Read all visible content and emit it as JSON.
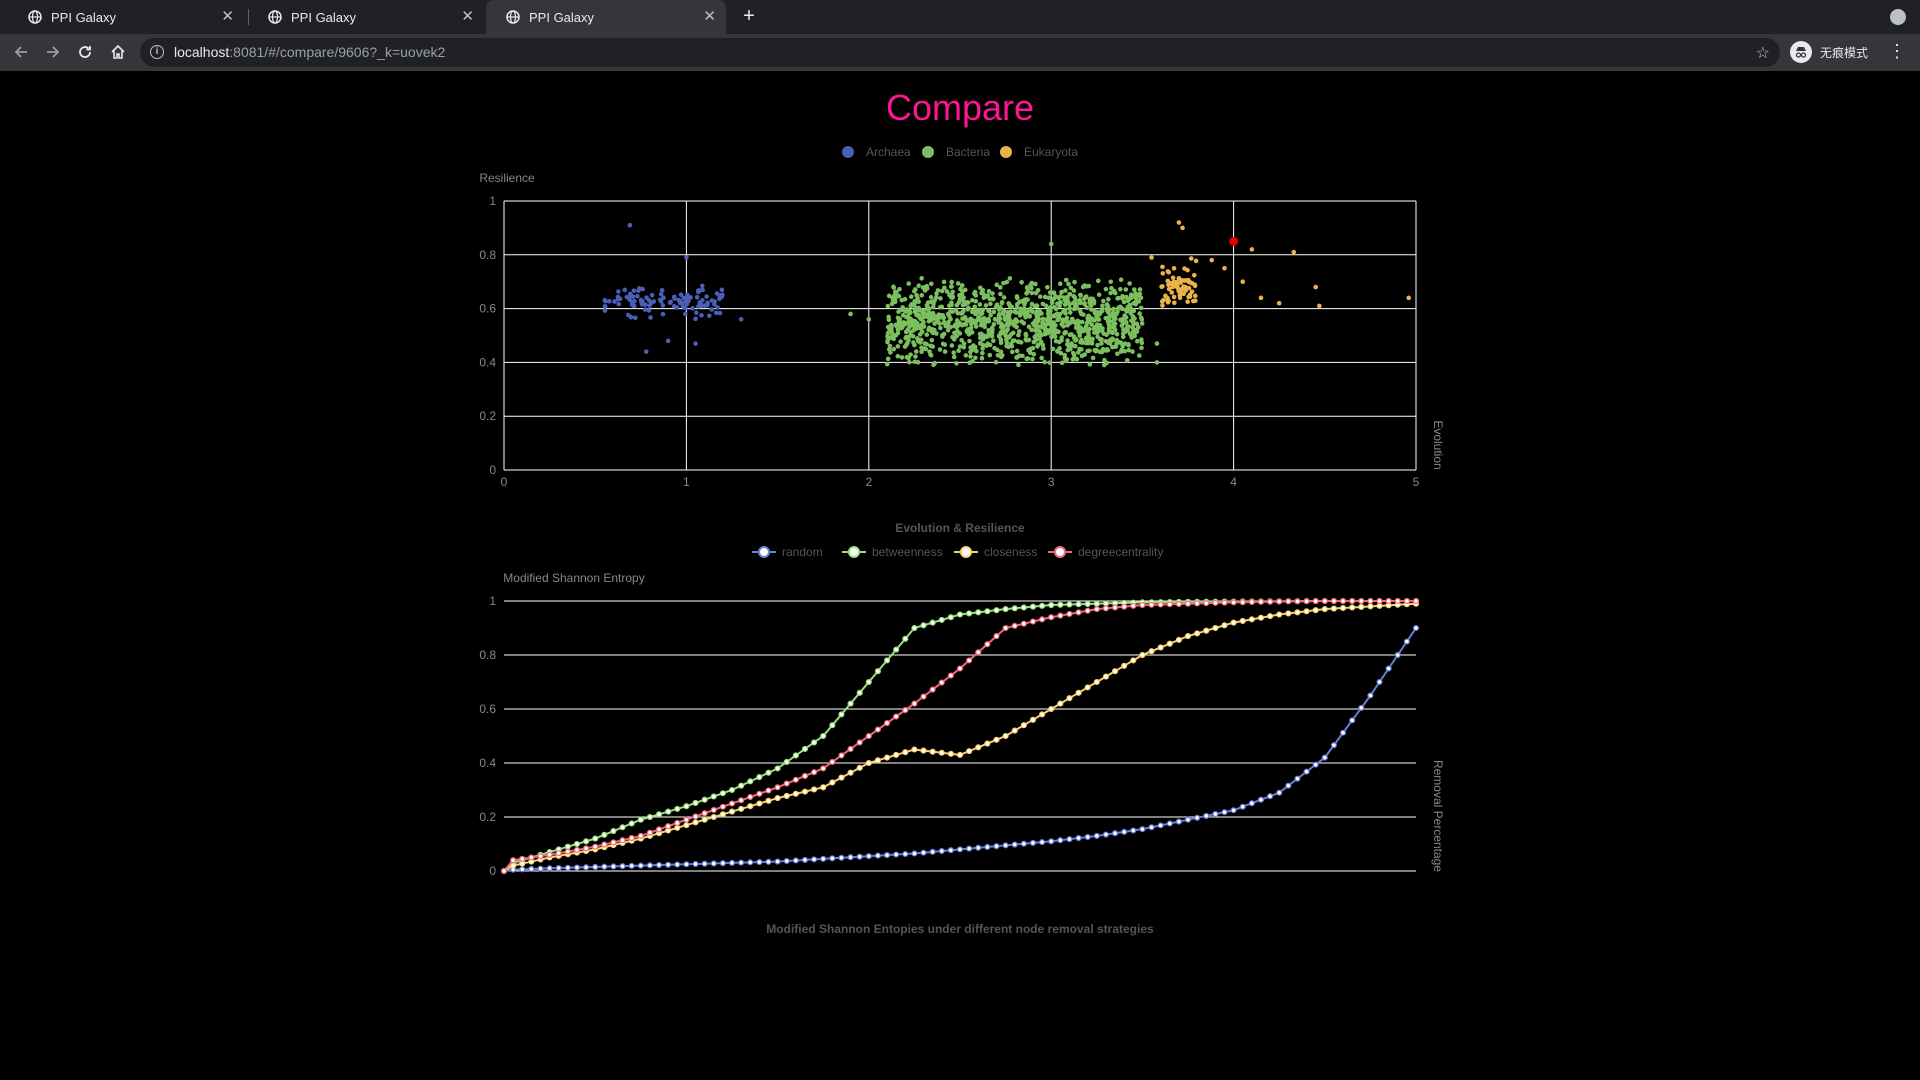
{
  "browser": {
    "tabs": [
      {
        "title": "PPI Galaxy",
        "active": false
      },
      {
        "title": "PPI Galaxy",
        "active": false
      },
      {
        "title": "PPI Galaxy",
        "active": true
      }
    ],
    "url_host": "localhost",
    "url_rest": ":8081/#/compare/9606?_k=uovek2",
    "profile_label": "无痕模式"
  },
  "page": {
    "title": "Compare"
  },
  "colors": {
    "title": "#ff1493",
    "archaea": "#4a5fb5",
    "bacteria": "#7bbf5e",
    "eukaryota": "#e9b34a",
    "highlight": "#e00000",
    "random": "#6a7fd6",
    "betweenness": "#9be07a",
    "closeness": "#f7d36b",
    "degreecentrality": "#f06b7a"
  },
  "chart_data": [
    {
      "type": "scatter",
      "title": "Evolution & Resilience",
      "xlabel": "Evolution",
      "ylabel": "Resilience",
      "xlim": [
        0,
        5
      ],
      "ylim": [
        0,
        1
      ],
      "xticks": [
        "0",
        "1",
        "2",
        "3",
        "4",
        "5"
      ],
      "yticks": [
        "0",
        "0.2",
        "0.4",
        "0.6",
        "0.8",
        "1"
      ],
      "grid": true,
      "legend": "top-center",
      "series": [
        {
          "name": "Archaea",
          "color_key": "archaea",
          "cluster": {
            "x": [
              0.55,
              1.2
            ],
            "y": [
              0.55,
              0.7
            ]
          },
          "points": [
            [
              0.69,
              0.91
            ],
            [
              1.0,
              0.79
            ],
            [
              1.3,
              0.56
            ],
            [
              0.78,
              0.44
            ],
            [
              0.9,
              0.48
            ],
            [
              1.05,
              0.47
            ]
          ]
        },
        {
          "name": "Bacteria",
          "color_key": "bacteria",
          "cluster": {
            "x": [
              2.1,
              3.5
            ],
            "y": [
              0.38,
              0.72
            ]
          },
          "points": [
            [
              1.9,
              0.58
            ],
            [
              2.0,
              0.56
            ],
            [
              3.0,
              0.84
            ],
            [
              3.58,
              0.4
            ],
            [
              3.58,
              0.47
            ]
          ]
        },
        {
          "name": "Eukaryota",
          "color_key": "eukaryota",
          "cluster": {
            "x": [
              3.6,
              3.8
            ],
            "y": [
              0.58,
              0.8
            ]
          },
          "points": [
            [
              3.7,
              0.92
            ],
            [
              3.72,
              0.9
            ],
            [
              3.55,
              0.79
            ],
            [
              4.1,
              0.82
            ],
            [
              4.33,
              0.81
            ],
            [
              4.45,
              0.68
            ],
            [
              4.47,
              0.61
            ],
            [
              4.96,
              0.64
            ],
            [
              4.25,
              0.62
            ],
            [
              4.15,
              0.64
            ],
            [
              4.05,
              0.7
            ],
            [
              3.95,
              0.75
            ],
            [
              3.88,
              0.78
            ]
          ]
        }
      ],
      "highlight_point": {
        "x": 4.0,
        "y": 0.85,
        "color_key": "highlight"
      }
    },
    {
      "type": "line",
      "title": "Modified Shannon Entopies under different node removal strategies",
      "xlabel": "Removal Percentage",
      "ylabel": "Modified Shannon Entropy",
      "ylim": [
        0,
        1
      ],
      "yticks": [
        "0",
        "0.2",
        "0.4",
        "0.6",
        "0.8",
        "1"
      ],
      "legend": "top-center",
      "x": [
        0,
        0.01,
        0.05,
        0.1,
        0.15,
        0.2,
        0.25,
        0.3,
        0.35,
        0.4,
        0.45,
        0.5,
        0.55,
        0.6,
        0.65,
        0.7,
        0.75,
        0.8,
        0.85,
        0.9,
        0.95,
        1.0
      ],
      "series": [
        {
          "name": "random",
          "color_key": "random",
          "values": [
            0,
            0.005,
            0.01,
            0.015,
            0.02,
            0.025,
            0.03,
            0.035,
            0.045,
            0.055,
            0.065,
            0.08,
            0.095,
            0.11,
            0.13,
            0.155,
            0.19,
            0.225,
            0.29,
            0.42,
            0.65,
            0.9
          ]
        },
        {
          "name": "betweenness",
          "color_key": "betweenness",
          "values": [
            0,
            0.03,
            0.07,
            0.12,
            0.19,
            0.24,
            0.3,
            0.38,
            0.5,
            0.7,
            0.9,
            0.95,
            0.97,
            0.985,
            0.99,
            0.995,
            0.997,
            0.998,
            0.999,
            1.0,
            1.0,
            1.0
          ]
        },
        {
          "name": "closeness",
          "color_key": "closeness",
          "values": [
            0,
            0.02,
            0.05,
            0.08,
            0.12,
            0.17,
            0.22,
            0.27,
            0.31,
            0.4,
            0.45,
            0.43,
            0.5,
            0.6,
            0.7,
            0.8,
            0.87,
            0.92,
            0.95,
            0.97,
            0.98,
            0.99
          ]
        },
        {
          "name": "degreecentrality",
          "color_key": "degreecentrality",
          "values": [
            0,
            0.04,
            0.06,
            0.09,
            0.13,
            0.19,
            0.25,
            0.31,
            0.38,
            0.5,
            0.62,
            0.75,
            0.9,
            0.94,
            0.97,
            0.985,
            0.99,
            0.995,
            0.998,
            1.0,
            1.0,
            1.0
          ]
        }
      ]
    }
  ]
}
